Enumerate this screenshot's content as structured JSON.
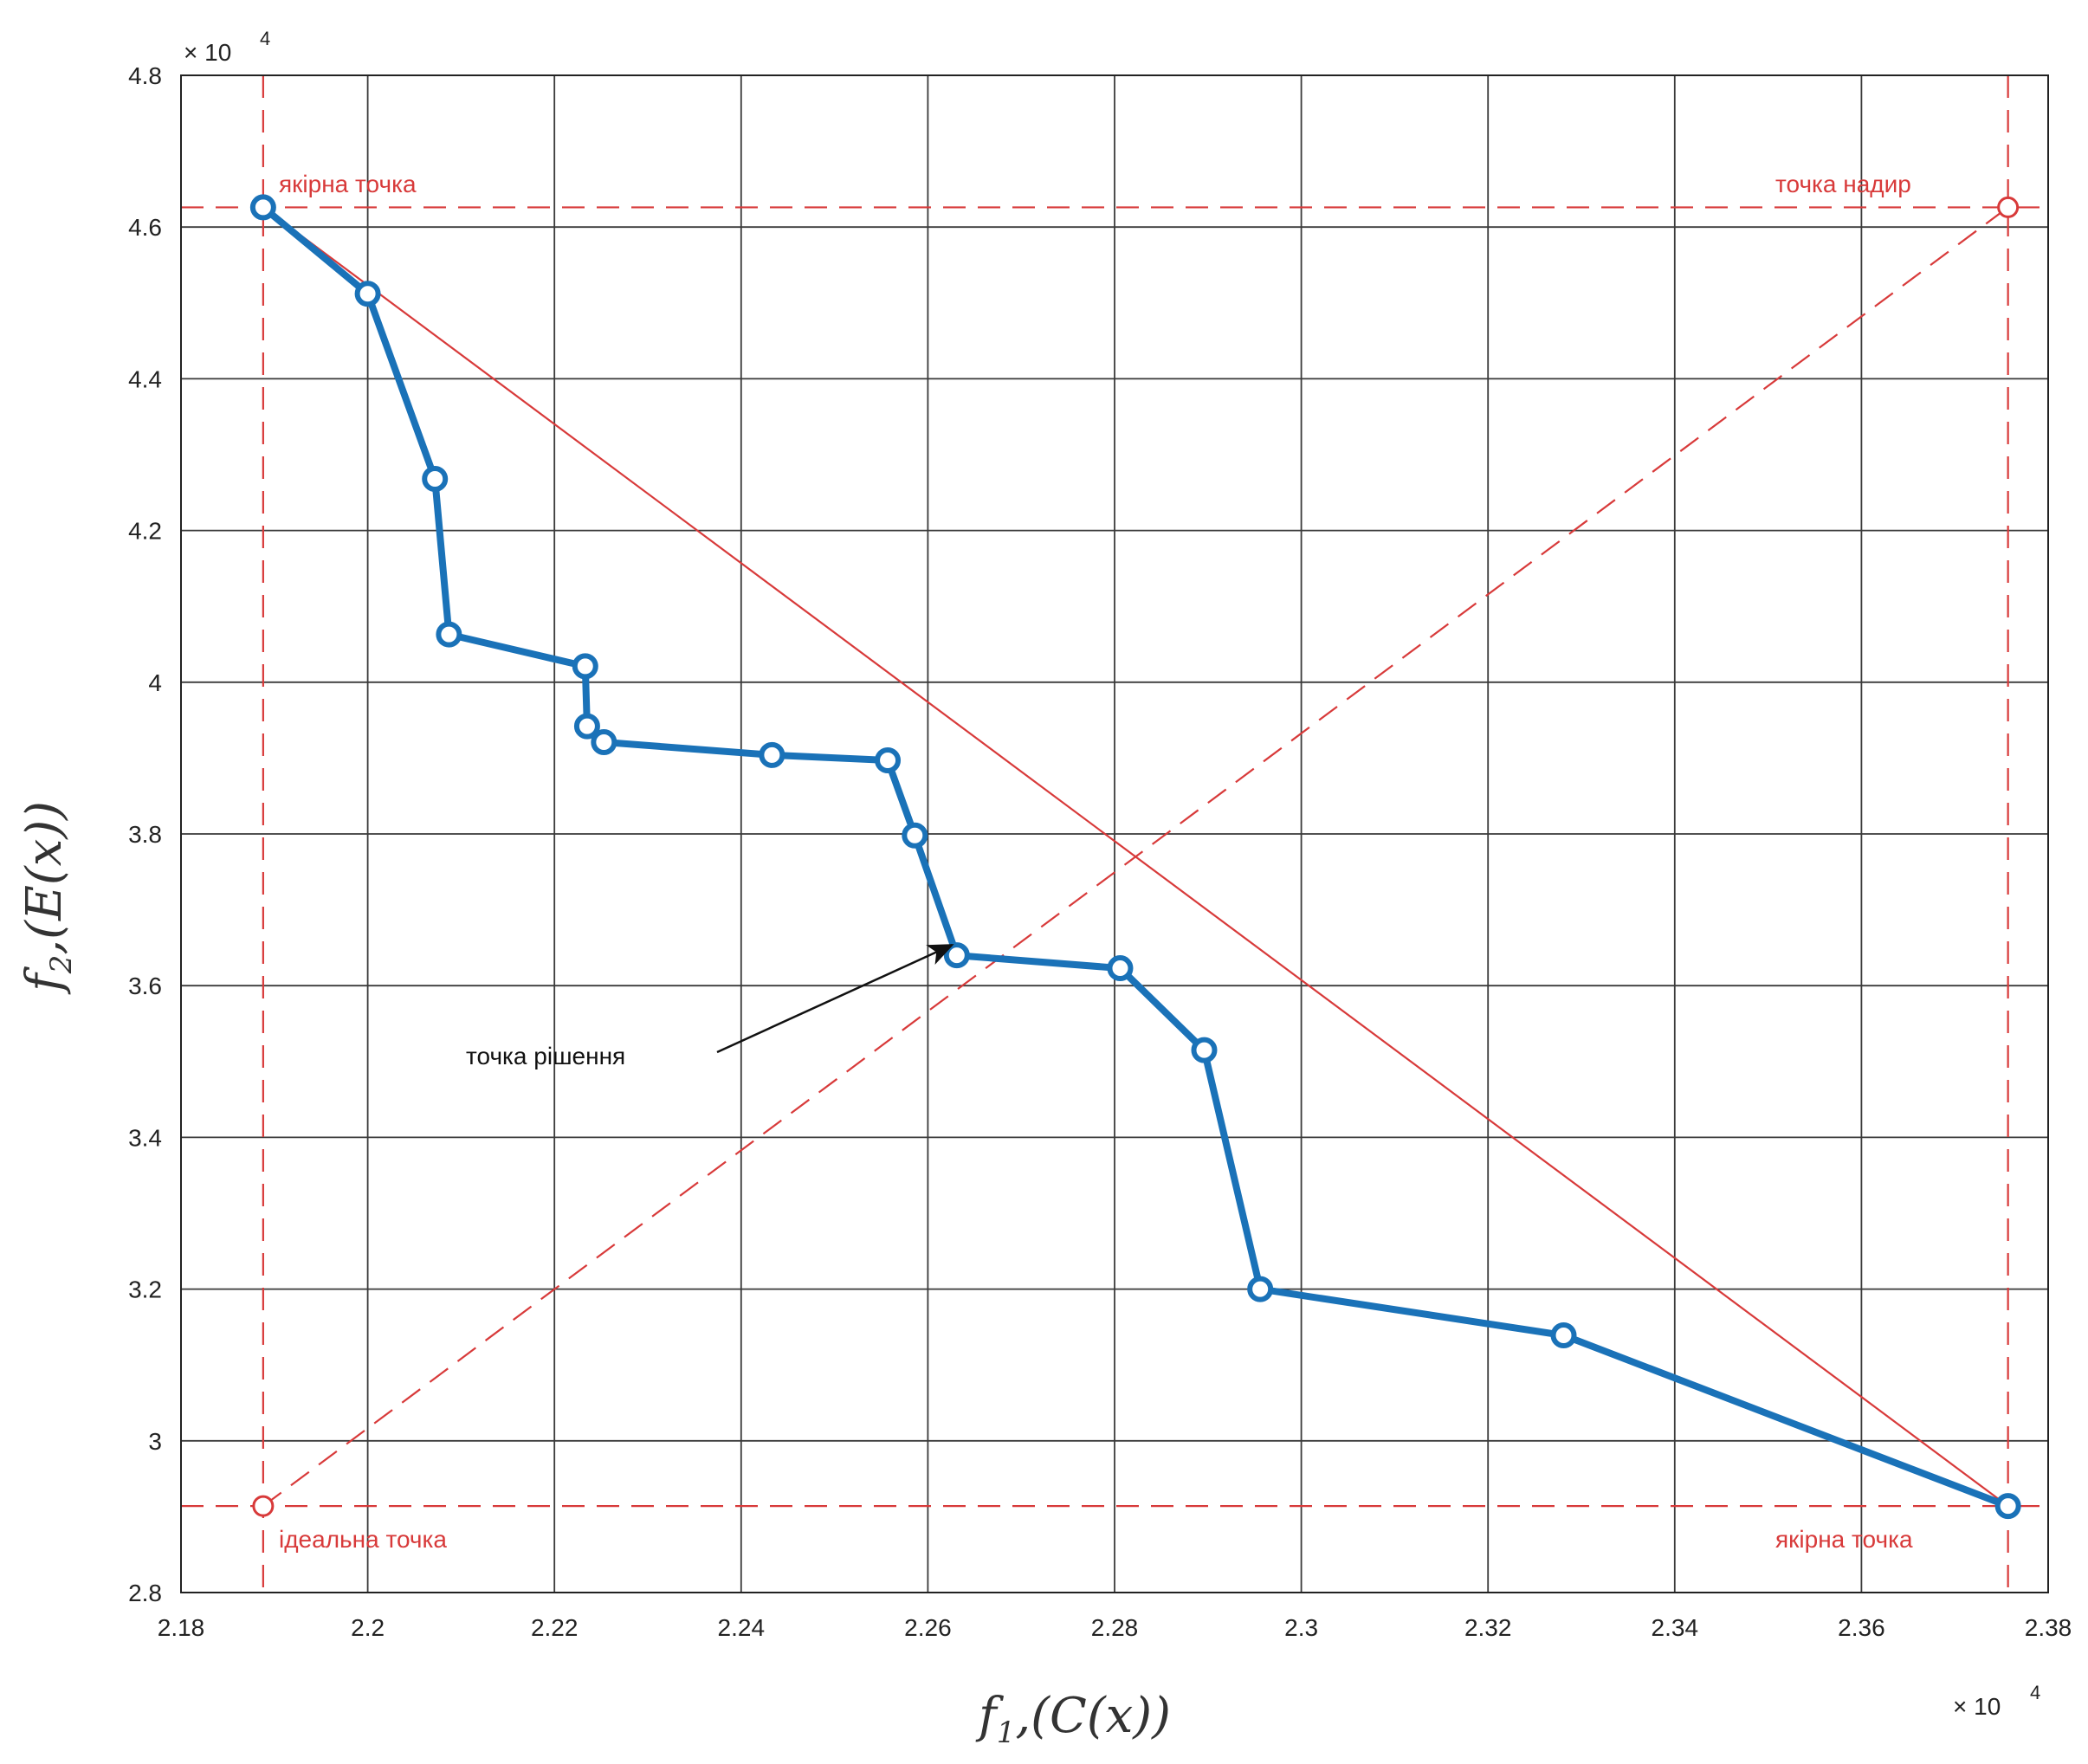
{
  "chart_data": {
    "type": "line",
    "x_exponent_label": "× 10",
    "x_exponent_power": "4",
    "y_exponent_label": "× 10",
    "y_exponent_power": "4",
    "xlim": [
      2.18,
      2.38
    ],
    "ylim": [
      2.8,
      4.8
    ],
    "x_ticks": [
      2.18,
      2.2,
      2.22,
      2.24,
      2.26,
      2.28,
      2.3,
      2.32,
      2.34,
      2.36,
      2.38
    ],
    "x_tick_labels": [
      "2.18",
      "2.2",
      "2.22",
      "2.24",
      "2.26",
      "2.28",
      "2.3",
      "2.32",
      "2.34",
      "2.36",
      "2.38"
    ],
    "y_ticks": [
      2.8,
      3.0,
      3.2,
      3.4,
      3.6,
      3.8,
      4.0,
      4.2,
      4.4,
      4.6,
      4.8
    ],
    "y_tick_labels": [
      "2.8",
      "3",
      "3.2",
      "3.4",
      "3.6",
      "3.8",
      "4",
      "4.2",
      "4.4",
      "4.6",
      "4.8"
    ],
    "grid": true,
    "xlabel": {
      "f": "f",
      "sub": "1",
      "rest": ",(C(x))"
    },
    "ylabel": {
      "f": "f",
      "sub": "2",
      "rest": ",(E(x))"
    },
    "series": [
      {
        "color": "#1a72b8",
        "x": [
          2.1888,
          2.2,
          2.2072,
          2.2087,
          2.2233,
          2.2235,
          2.2253,
          2.2433,
          2.2557,
          2.2586,
          2.2631,
          2.2806,
          2.2896,
          2.2956,
          2.3281,
          2.3757
        ],
        "y": [
          4.626,
          4.512,
          4.268,
          4.063,
          4.021,
          3.942,
          3.921,
          3.904,
          3.897,
          3.798,
          3.64,
          3.623,
          3.515,
          3.2,
          3.139,
          2.914
        ]
      }
    ],
    "reference": {
      "color": "#d83a3a",
      "ideal_point": {
        "x": 2.1888,
        "y": 2.914,
        "label": "ідеальна точка"
      },
      "nadir_point": {
        "x": 2.3757,
        "y": 4.626,
        "label": "точка надир"
      },
      "anchor_point_1": {
        "x": 2.1888,
        "y": 4.626,
        "label": "якірна точка"
      },
      "anchor_point_2": {
        "x": 2.3757,
        "y": 2.914,
        "label": "якірна точка"
      }
    },
    "solution_annotation": {
      "label": "точка рішення",
      "point": {
        "x": 2.26,
        "y": 3.64
      }
    }
  }
}
